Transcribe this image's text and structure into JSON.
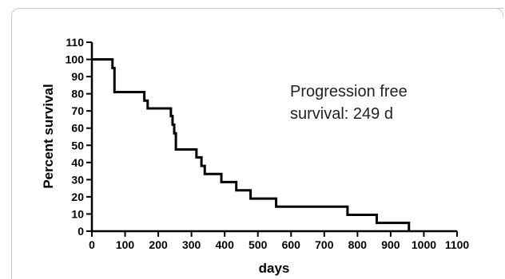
{
  "chart_data": {
    "type": "line",
    "xlabel": "days",
    "ylabel": "Percent survival",
    "xlim": [
      0,
      1100
    ],
    "ylim": [
      0,
      110
    ],
    "x_ticks": [
      0,
      100,
      200,
      300,
      400,
      500,
      600,
      700,
      800,
      900,
      1000,
      1100
    ],
    "y_ticks": [
      0,
      10,
      20,
      30,
      40,
      50,
      60,
      70,
      80,
      90,
      100,
      110
    ],
    "annotation": [
      "Progression free",
      "survival: 249 d"
    ],
    "series": [
      {
        "step": true,
        "x": [
          0,
          62,
          68,
          158,
          168,
          238,
          243,
          248,
          253,
          315,
          330,
          340,
          390,
          435,
          478,
          555,
          770,
          858,
          955
        ],
        "y": [
          100,
          95,
          81,
          76,
          71.5,
          67,
          62,
          57,
          47.6,
          43,
          38,
          33.3,
          28.6,
          23.8,
          19,
          14.3,
          9.5,
          4.8,
          0
        ]
      }
    ],
    "grid": false,
    "line_color": "#000000"
  }
}
